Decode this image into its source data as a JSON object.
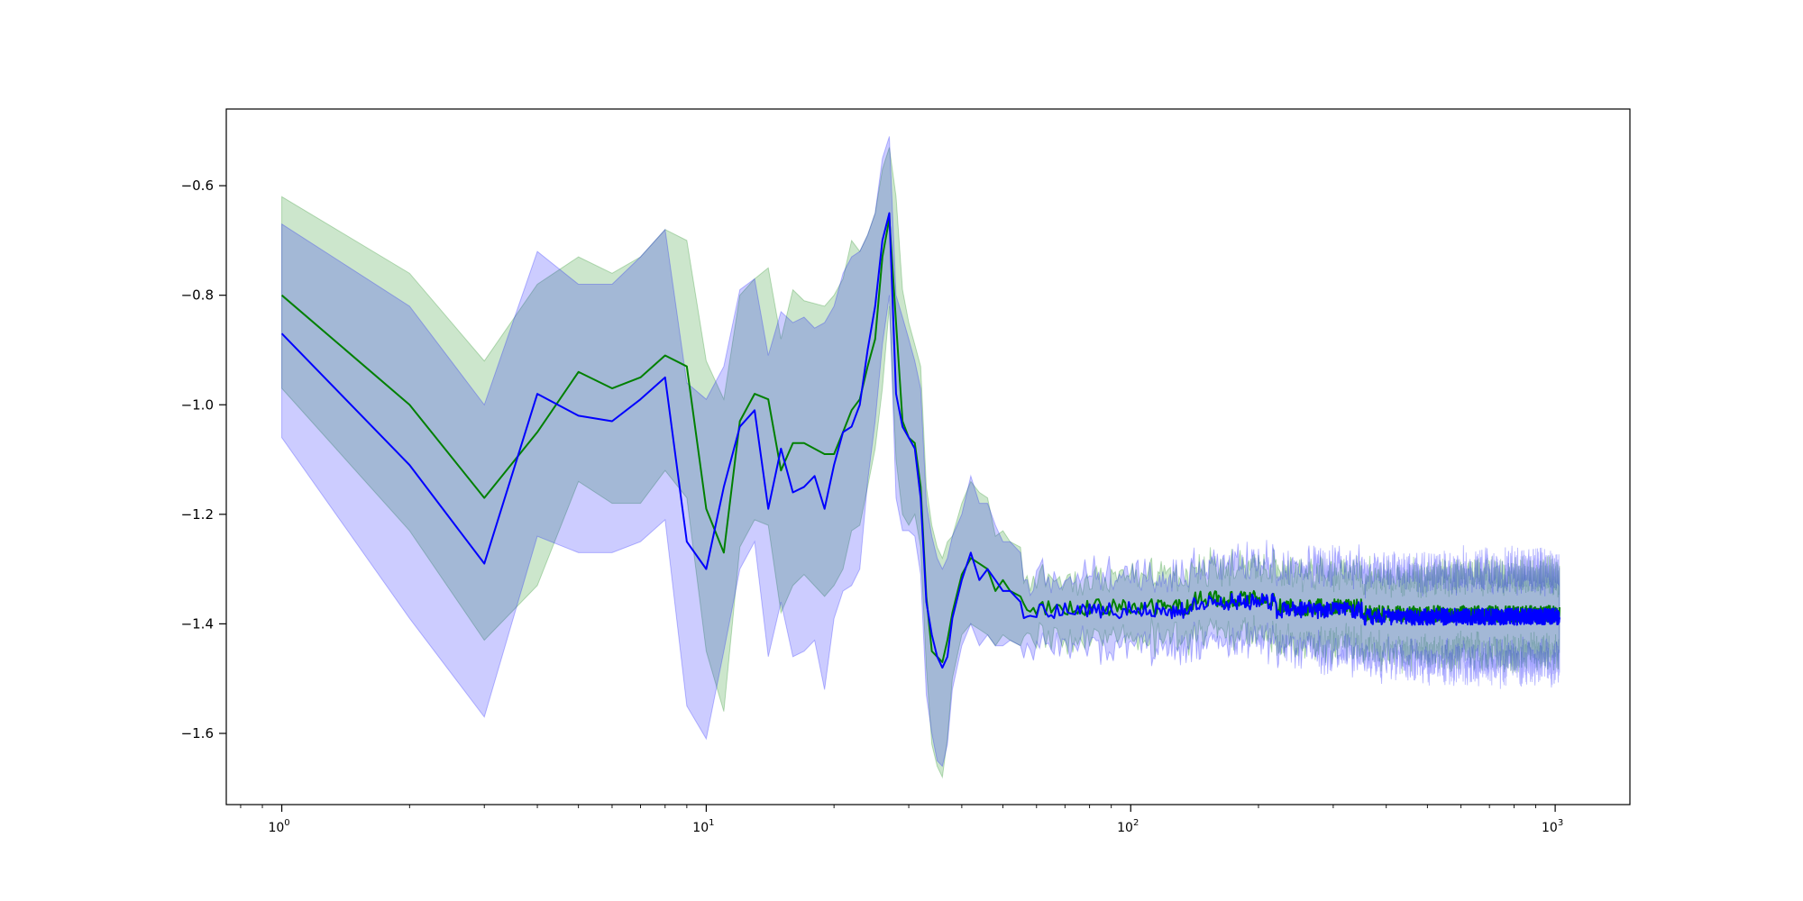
{
  "chart_data": {
    "type": "line",
    "xscale": "log",
    "xlim": [
      0.74,
      1500
    ],
    "ylim": [
      -1.73,
      -0.46
    ],
    "xticks": [
      {
        "value": 1,
        "base": "10",
        "exp": "0"
      },
      {
        "value": 10,
        "base": "10",
        "exp": "1"
      },
      {
        "value": 100,
        "base": "10",
        "exp": "2"
      },
      {
        "value": 1000,
        "base": "10",
        "exp": "3"
      }
    ],
    "yticks": [
      {
        "value": -0.6,
        "label": "−0.6"
      },
      {
        "value": -0.8,
        "label": "−0.8"
      },
      {
        "value": -1.0,
        "label": "−1.0"
      },
      {
        "value": -1.2,
        "label": "−1.2"
      },
      {
        "value": -1.4,
        "label": "−1.4"
      },
      {
        "value": -1.6,
        "label": "−1.6"
      }
    ],
    "grid": false,
    "noise_tail_start": 55,
    "noise_tail_end": 1024,
    "series": [
      {
        "color": "#008000",
        "band_color": "#008000",
        "band_opacity": 0.2,
        "tail_level": -1.37,
        "tail_band": 0.05,
        "points": [
          [
            1,
            -0.8,
            -0.97,
            -0.62
          ],
          [
            2,
            -1.0,
            -1.23,
            -0.76
          ],
          [
            3,
            -1.17,
            -1.43,
            -0.92
          ],
          [
            4,
            -1.05,
            -1.33,
            -0.78
          ],
          [
            5,
            -0.94,
            -1.14,
            -0.73
          ],
          [
            6,
            -0.97,
            -1.18,
            -0.76
          ],
          [
            7,
            -0.95,
            -1.18,
            -0.73
          ],
          [
            8,
            -0.91,
            -1.12,
            -0.68
          ],
          [
            9,
            -0.93,
            -1.17,
            -0.7
          ],
          [
            10,
            -1.19,
            -1.45,
            -0.92
          ],
          [
            11,
            -1.27,
            -1.56,
            -0.99
          ],
          [
            12,
            -1.03,
            -1.26,
            -0.8
          ],
          [
            13,
            -0.98,
            -1.21,
            -0.77
          ],
          [
            14,
            -0.99,
            -1.22,
            -0.75
          ],
          [
            15,
            -1.12,
            -1.38,
            -0.88
          ],
          [
            16,
            -1.07,
            -1.33,
            -0.79
          ],
          [
            17,
            -1.07,
            -1.31,
            -0.81
          ],
          [
            19,
            -1.09,
            -1.35,
            -0.82
          ],
          [
            20,
            -1.09,
            -1.33,
            -0.8
          ],
          [
            21,
            -1.05,
            -1.3,
            -0.77
          ],
          [
            22,
            -1.01,
            -1.23,
            -0.7
          ],
          [
            23,
            -0.99,
            -1.22,
            -0.72
          ],
          [
            24,
            -0.93,
            -1.15,
            -0.69
          ],
          [
            25,
            -0.88,
            -1.08,
            -0.65
          ],
          [
            26,
            -0.73,
            -0.97,
            -0.57
          ],
          [
            27,
            -0.66,
            -0.82,
            -0.53
          ],
          [
            28,
            -0.85,
            -1.1,
            -0.62
          ],
          [
            29,
            -1.03,
            -1.2,
            -0.79
          ],
          [
            30,
            -1.06,
            -1.22,
            -0.85
          ],
          [
            31,
            -1.07,
            -1.2,
            -0.89
          ],
          [
            32,
            -1.15,
            -1.26,
            -0.93
          ],
          [
            33,
            -1.35,
            -1.48,
            -1.15
          ],
          [
            34,
            -1.45,
            -1.62,
            -1.22
          ],
          [
            35,
            -1.46,
            -1.66,
            -1.26
          ],
          [
            36,
            -1.47,
            -1.68,
            -1.28
          ],
          [
            37,
            -1.43,
            -1.61,
            -1.25
          ],
          [
            38,
            -1.38,
            -1.5,
            -1.24
          ],
          [
            40,
            -1.31,
            -1.42,
            -1.18
          ],
          [
            42,
            -1.28,
            -1.4,
            -1.14
          ],
          [
            44,
            -1.29,
            -1.41,
            -1.16
          ],
          [
            46,
            -1.3,
            -1.42,
            -1.17
          ],
          [
            48,
            -1.34,
            -1.44,
            -1.24
          ],
          [
            50,
            -1.32,
            -1.42,
            -1.23
          ],
          [
            52,
            -1.34,
            -1.43,
            -1.25
          ],
          [
            55,
            -1.35,
            -1.44,
            -1.26
          ]
        ]
      },
      {
        "color": "#0000ff",
        "band_color": "#0000ff",
        "band_opacity": 0.2,
        "tail_level": -1.375,
        "tail_band": 0.06,
        "points": [
          [
            1,
            -0.87,
            -1.06,
            -0.67
          ],
          [
            2,
            -1.11,
            -1.39,
            -0.82
          ],
          [
            3,
            -1.29,
            -1.57,
            -1.0
          ],
          [
            4,
            -0.98,
            -1.24,
            -0.72
          ],
          [
            5,
            -1.02,
            -1.27,
            -0.78
          ],
          [
            6,
            -1.03,
            -1.27,
            -0.78
          ],
          [
            7,
            -0.99,
            -1.25,
            -0.73
          ],
          [
            8,
            -0.95,
            -1.21,
            -0.68
          ],
          [
            9,
            -1.25,
            -1.55,
            -0.96
          ],
          [
            10,
            -1.3,
            -1.61,
            -0.99
          ],
          [
            11,
            -1.15,
            -1.45,
            -0.93
          ],
          [
            12,
            -1.04,
            -1.3,
            -0.79
          ],
          [
            13,
            -1.01,
            -1.25,
            -0.77
          ],
          [
            14,
            -1.19,
            -1.46,
            -0.91
          ],
          [
            15,
            -1.08,
            -1.36,
            -0.83
          ],
          [
            16,
            -1.16,
            -1.46,
            -0.85
          ],
          [
            17,
            -1.15,
            -1.45,
            -0.84
          ],
          [
            18,
            -1.13,
            -1.43,
            -0.86
          ],
          [
            19,
            -1.19,
            -1.52,
            -0.85
          ],
          [
            20,
            -1.11,
            -1.39,
            -0.82
          ],
          [
            21,
            -1.05,
            -1.34,
            -0.76
          ],
          [
            22,
            -1.04,
            -1.33,
            -0.73
          ],
          [
            23,
            -1.0,
            -1.3,
            -0.72
          ],
          [
            24,
            -0.9,
            -1.14,
            -0.69
          ],
          [
            25,
            -0.82,
            -1.03,
            -0.65
          ],
          [
            26,
            -0.7,
            -0.89,
            -0.55
          ],
          [
            27,
            -0.65,
            -0.8,
            -0.51
          ],
          [
            28,
            -0.98,
            -1.17,
            -0.8
          ],
          [
            29,
            -1.04,
            -1.23,
            -0.84
          ],
          [
            30,
            -1.06,
            -1.23,
            -0.88
          ],
          [
            31,
            -1.08,
            -1.24,
            -0.92
          ],
          [
            32,
            -1.17,
            -1.31,
            -0.97
          ],
          [
            33,
            -1.36,
            -1.53,
            -1.18
          ],
          [
            34,
            -1.42,
            -1.6,
            -1.24
          ],
          [
            35,
            -1.46,
            -1.65,
            -1.28
          ],
          [
            36,
            -1.48,
            -1.66,
            -1.3
          ],
          [
            37,
            -1.46,
            -1.62,
            -1.28
          ],
          [
            38,
            -1.39,
            -1.52,
            -1.24
          ],
          [
            40,
            -1.32,
            -1.44,
            -1.2
          ],
          [
            42,
            -1.27,
            -1.4,
            -1.13
          ],
          [
            44,
            -1.32,
            -1.44,
            -1.18
          ],
          [
            46,
            -1.3,
            -1.42,
            -1.18
          ],
          [
            48,
            -1.32,
            -1.44,
            -1.22
          ],
          [
            50,
            -1.34,
            -1.44,
            -1.25
          ],
          [
            52,
            -1.34,
            -1.43,
            -1.25
          ],
          [
            55,
            -1.36,
            -1.44,
            -1.27
          ]
        ]
      }
    ]
  }
}
